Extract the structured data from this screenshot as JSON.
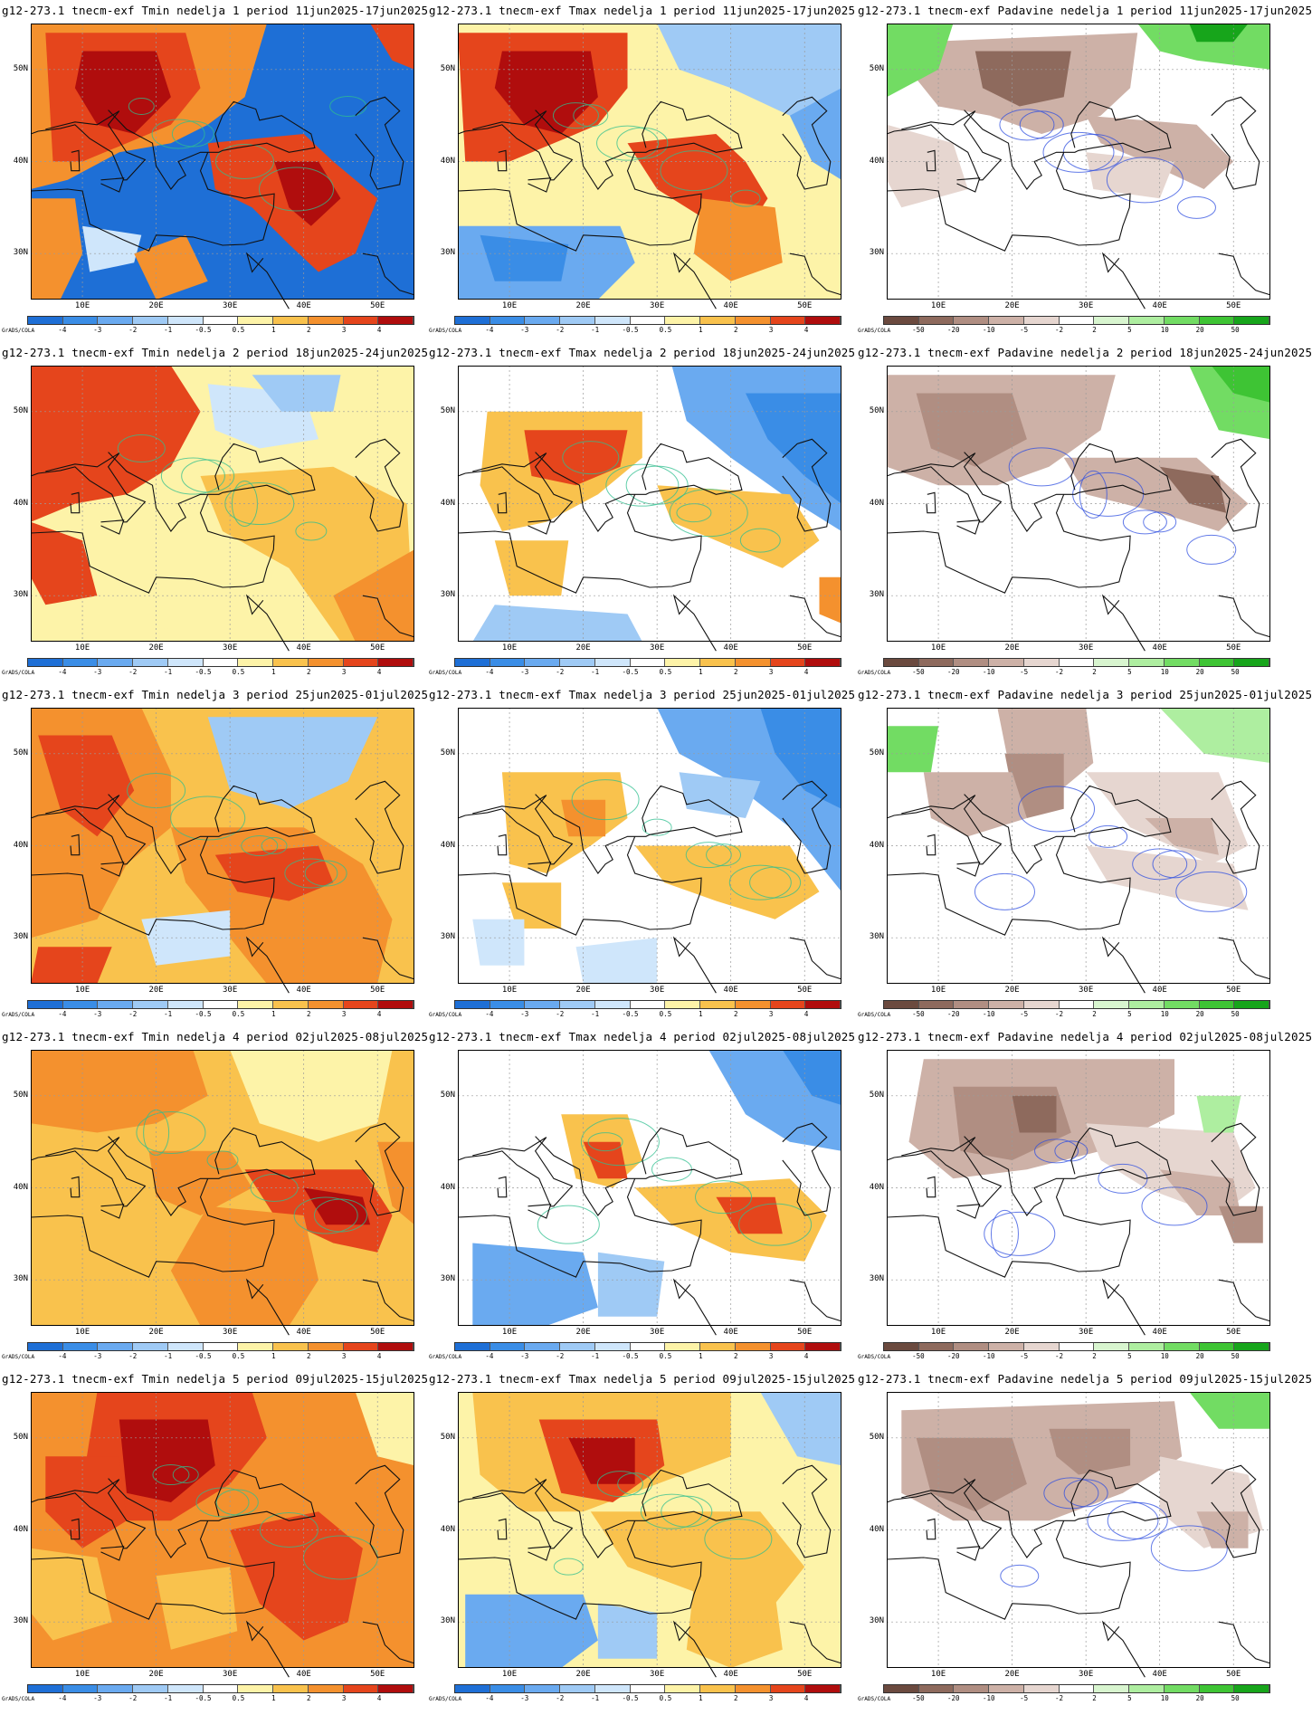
{
  "credit": "GrADS/COLA",
  "axes": {
    "lon_ticks": [
      "10E",
      "20E",
      "30E",
      "40E",
      "50E"
    ],
    "lat_ticks": [
      "50N",
      "40N",
      "30N"
    ]
  },
  "legends": {
    "temperature": {
      "labels": [
        "-4",
        "-3",
        "-2",
        "-1",
        "-0.5",
        "0.5",
        "1",
        "2",
        "3",
        "4"
      ],
      "colors": [
        "#1e6fd6",
        "#3a8de6",
        "#6aaaf0",
        "#9fcaf5",
        "#cfe6fb",
        "#ffffff",
        "#fdf3a8",
        "#f9c24d",
        "#f4912e",
        "#e5451c",
        "#b00d0d"
      ]
    },
    "precipitation": {
      "labels": [
        "-50",
        "-20",
        "-10",
        "-5",
        "-2",
        "2",
        "5",
        "10",
        "20",
        "50"
      ],
      "colors": [
        "#6b4a3f",
        "#8e6a5d",
        "#b08e82",
        "#cdb1a7",
        "#e6d6d0",
        "#ffffff",
        "#d8f5cf",
        "#aeeea0",
        "#72dc63",
        "#3ec434",
        "#17a51b"
      ]
    }
  },
  "panels": [
    {
      "title": "g12-273.1 tnecm-exf Tmin nedelja 1 period 11jun2025-17jun2025",
      "variable": "Tmin",
      "week": 1
    },
    {
      "title": "g12-273.1 tnecm-exf Tmax nedelja 1 period 11jun2025-17jun2025",
      "variable": "Tmax",
      "week": 1
    },
    {
      "title": "g12-273.1 tnecm-exf Padavine nedelja 1 period 11jun2025-17jun2025",
      "variable": "Padavine",
      "week": 1
    },
    {
      "title": "g12-273.1 tnecm-exf Tmin nedelja 2 period 18jun2025-24jun2025",
      "variable": "Tmin",
      "week": 2
    },
    {
      "title": "g12-273.1 tnecm-exf Tmax nedelja 2 period 18jun2025-24jun2025",
      "variable": "Tmax",
      "week": 2
    },
    {
      "title": "g12-273.1 tnecm-exf Padavine nedelja 2 period 18jun2025-24jun2025",
      "variable": "Padavine",
      "week": 2
    },
    {
      "title": "g12-273.1 tnecm-exf Tmin nedelja 3 period 25jun2025-01jul2025",
      "variable": "Tmin",
      "week": 3
    },
    {
      "title": "g12-273.1 tnecm-exf Tmax nedelja 3 period 25jun2025-01jul2025",
      "variable": "Tmax",
      "week": 3
    },
    {
      "title": "g12-273.1 tnecm-exf Padavine nedelja 3 period 25jun2025-01jul2025",
      "variable": "Padavine",
      "week": 3
    },
    {
      "title": "g12-273.1 tnecm-exf Tmin nedelja 4 period 02jul2025-08jul2025",
      "variable": "Tmin",
      "week": 4
    },
    {
      "title": "g12-273.1 tnecm-exf Tmax nedelja 4 period 02jul2025-08jul2025",
      "variable": "Tmax",
      "week": 4
    },
    {
      "title": "g12-273.1 tnecm-exf Padavine nedelja 4 period 02jul2025-08jul2025",
      "variable": "Padavine",
      "week": 4
    },
    {
      "title": "g12-273.1 tnecm-exf Tmin nedelja 5 period 09jul2025-15jul2025",
      "variable": "Tmin",
      "week": 5
    },
    {
      "title": "g12-273.1 tnecm-exf Tmax nedelja 5 period 09jul2025-15jul2025",
      "variable": "Tmax",
      "week": 5
    },
    {
      "title": "g12-273.1 tnecm-exf Padavine nedelja 5 period 09jul2025-15jul2025",
      "variable": "Padavine",
      "week": 5
    }
  ]
}
